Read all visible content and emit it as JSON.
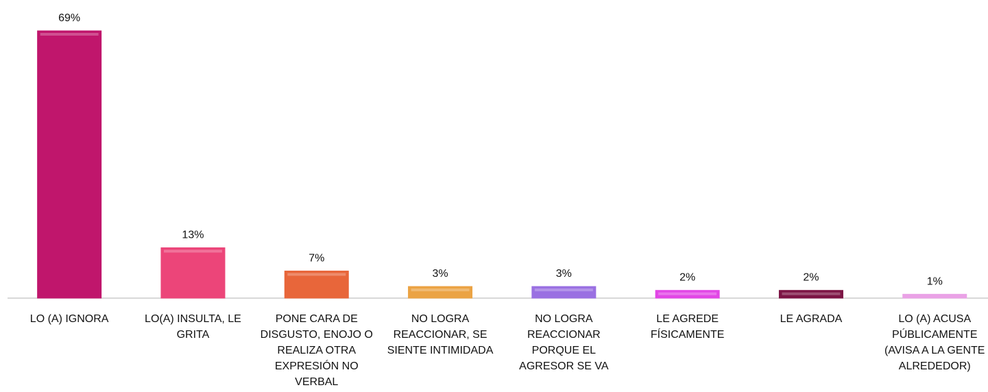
{
  "chart_data": {
    "type": "bar",
    "categories": [
      "LO (A) IGNORA",
      "LO(A) INSULTA, LE GRITA",
      "PONE CARA DE DISGUSTO, ENOJO O REALIZA OTRA EXPRESIÓN NO VERBAL",
      "NO LOGRA REACCIONAR, SE SIENTE INTIMIDADA",
      "NO LOGRA REACCIONAR PORQUE EL AGRESOR SE VA",
      "LE AGREDE FÍSICAMENTE",
      "LE AGRADA",
      "LO (A) ACUSA PÚBLICAMENTE (AVISA A LA GENTE ALREDEDOR)"
    ],
    "values": [
      69,
      13,
      7,
      3,
      3,
      2,
      2,
      1
    ],
    "value_labels": [
      "69%",
      "13%",
      "7%",
      "3%",
      "3%",
      "2%",
      "2%",
      "1%"
    ],
    "colors": [
      "#c0166c",
      "#ec4579",
      "#e8663a",
      "#eba344",
      "#9a70e2",
      "#e246e6",
      "#7c1444",
      "#eaa2e6"
    ]
  }
}
